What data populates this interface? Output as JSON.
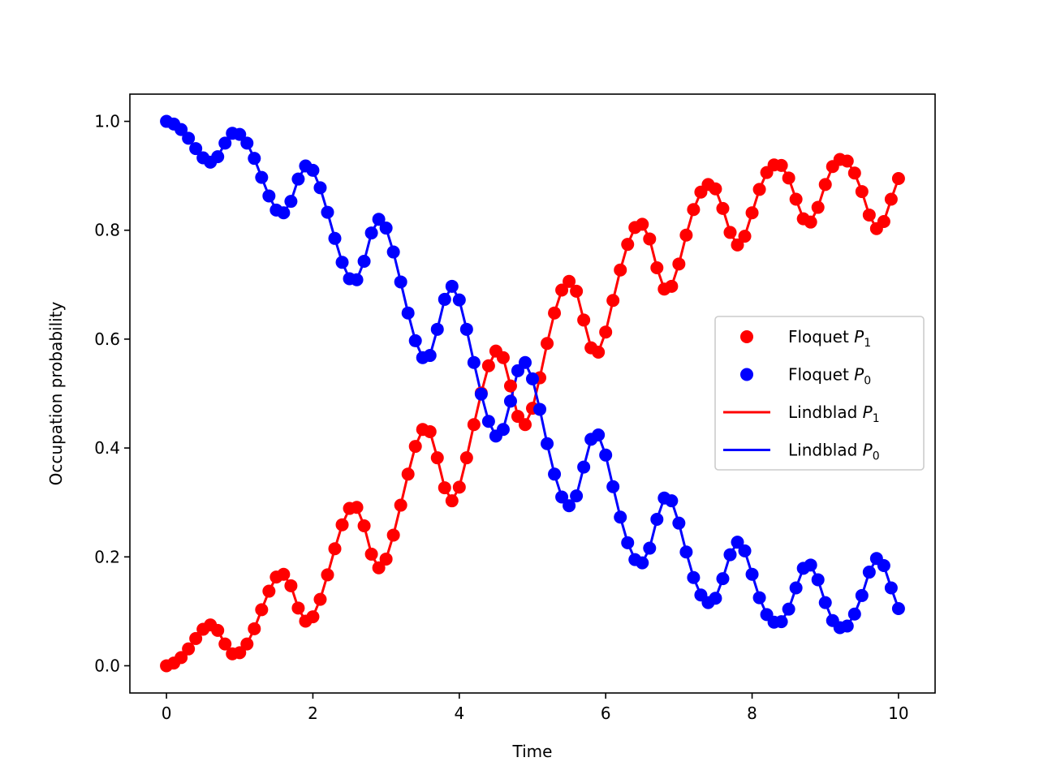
{
  "chart_data": {
    "type": "line",
    "title": "",
    "xlabel": "Time",
    "ylabel": "Occupation probability",
    "xlim": [
      -0.5,
      10.5
    ],
    "ylim": [
      -0.05,
      1.05
    ],
    "xticks": [
      0,
      2,
      4,
      6,
      8,
      10
    ],
    "xtick_labels": [
      "0",
      "2",
      "4",
      "6",
      "8",
      "10"
    ],
    "yticks": [
      0.0,
      0.2,
      0.4,
      0.6,
      0.8,
      1.0
    ],
    "ytick_labels": [
      "0.0",
      "0.2",
      "0.4",
      "0.6",
      "0.8",
      "1.0"
    ],
    "grid": false,
    "legend_position": "center-right",
    "legend": [
      {
        "label": "Floquet ",
        "sub_base": "P",
        "sub": "1",
        "style": "marker",
        "color": "#ff0000"
      },
      {
        "label": "Floquet ",
        "sub_base": "P",
        "sub": "0",
        "style": "marker",
        "color": "#0000ff"
      },
      {
        "label": "Lindblad ",
        "sub_base": "P",
        "sub": "1",
        "style": "line",
        "color": "#ff0000"
      },
      {
        "label": "Lindblad ",
        "sub_base": "P",
        "sub": "0",
        "style": "line",
        "color": "#0000ff"
      }
    ],
    "x": [
      0.0,
      0.1,
      0.2,
      0.3,
      0.4,
      0.5,
      0.6,
      0.7,
      0.8,
      0.9,
      1.0,
      1.1,
      1.2,
      1.3,
      1.4,
      1.5,
      1.6,
      1.7,
      1.8,
      1.9,
      2.0,
      2.1,
      2.2,
      2.3,
      2.4,
      2.5,
      2.6,
      2.7,
      2.8,
      2.9,
      3.0,
      3.1,
      3.2,
      3.3,
      3.4,
      3.5,
      3.6,
      3.7,
      3.8,
      3.9,
      4.0,
      4.1,
      4.2,
      4.3,
      4.4,
      4.5,
      4.6,
      4.7,
      4.8,
      4.9,
      5.0,
      5.1,
      5.2,
      5.3,
      5.4,
      5.5,
      5.6,
      5.7,
      5.8,
      5.9,
      6.0,
      6.1,
      6.2,
      6.3,
      6.4,
      6.5,
      6.6,
      6.7,
      6.8,
      6.9,
      7.0,
      7.1,
      7.2,
      7.3,
      7.4,
      7.5,
      7.6,
      7.7,
      7.8,
      7.9,
      8.0,
      8.1,
      8.2,
      8.3,
      8.4,
      8.5,
      8.6,
      8.7,
      8.8,
      8.9,
      9.0,
      9.1,
      9.2,
      9.3,
      9.4,
      9.5,
      9.6,
      9.7,
      9.8,
      9.9,
      10.0
    ],
    "series": [
      {
        "name": "Floquet P1 / Lindblad P1",
        "color": "#ff0000",
        "values": [
          0.0,
          0.005,
          0.015,
          0.031,
          0.05,
          0.067,
          0.075,
          0.065,
          0.04,
          0.022,
          0.024,
          0.04,
          0.068,
          0.103,
          0.137,
          0.163,
          0.168,
          0.147,
          0.106,
          0.082,
          0.09,
          0.122,
          0.167,
          0.215,
          0.259,
          0.289,
          0.291,
          0.257,
          0.205,
          0.18,
          0.196,
          0.24,
          0.295,
          0.352,
          0.403,
          0.434,
          0.43,
          0.382,
          0.327,
          0.303,
          0.328,
          0.382,
          0.443,
          0.501,
          0.551,
          0.578,
          0.566,
          0.514,
          0.458,
          0.443,
          0.473,
          0.529,
          0.592,
          0.648,
          0.69,
          0.706,
          0.688,
          0.635,
          0.584,
          0.576,
          0.613,
          0.671,
          0.727,
          0.774,
          0.805,
          0.811,
          0.784,
          0.731,
          0.692,
          0.697,
          0.738,
          0.791,
          0.838,
          0.87,
          0.884,
          0.876,
          0.84,
          0.796,
          0.773,
          0.789,
          0.832,
          0.875,
          0.906,
          0.92,
          0.919,
          0.896,
          0.857,
          0.821,
          0.815,
          0.842,
          0.884,
          0.917,
          0.93,
          0.927,
          0.905,
          0.871,
          0.828,
          0.803,
          0.816,
          0.857,
          0.895
        ]
      },
      {
        "name": "Floquet P0 / Lindblad P0",
        "color": "#0000ff",
        "values": [
          1.0,
          0.995,
          0.985,
          0.969,
          0.95,
          0.933,
          0.925,
          0.935,
          0.96,
          0.978,
          0.976,
          0.96,
          0.932,
          0.897,
          0.863,
          0.837,
          0.832,
          0.853,
          0.894,
          0.918,
          0.91,
          0.878,
          0.833,
          0.785,
          0.741,
          0.711,
          0.709,
          0.743,
          0.795,
          0.82,
          0.804,
          0.76,
          0.705,
          0.648,
          0.597,
          0.566,
          0.57,
          0.618,
          0.673,
          0.697,
          0.672,
          0.618,
          0.557,
          0.499,
          0.449,
          0.422,
          0.434,
          0.486,
          0.542,
          0.557,
          0.527,
          0.471,
          0.408,
          0.352,
          0.31,
          0.294,
          0.312,
          0.365,
          0.416,
          0.424,
          0.387,
          0.329,
          0.273,
          0.226,
          0.195,
          0.189,
          0.216,
          0.269,
          0.308,
          0.303,
          0.262,
          0.209,
          0.162,
          0.13,
          0.116,
          0.124,
          0.16,
          0.204,
          0.227,
          0.211,
          0.168,
          0.125,
          0.094,
          0.08,
          0.081,
          0.104,
          0.143,
          0.179,
          0.185,
          0.158,
          0.116,
          0.083,
          0.07,
          0.073,
          0.095,
          0.129,
          0.172,
          0.197,
          0.184,
          0.143,
          0.105
        ]
      }
    ]
  }
}
